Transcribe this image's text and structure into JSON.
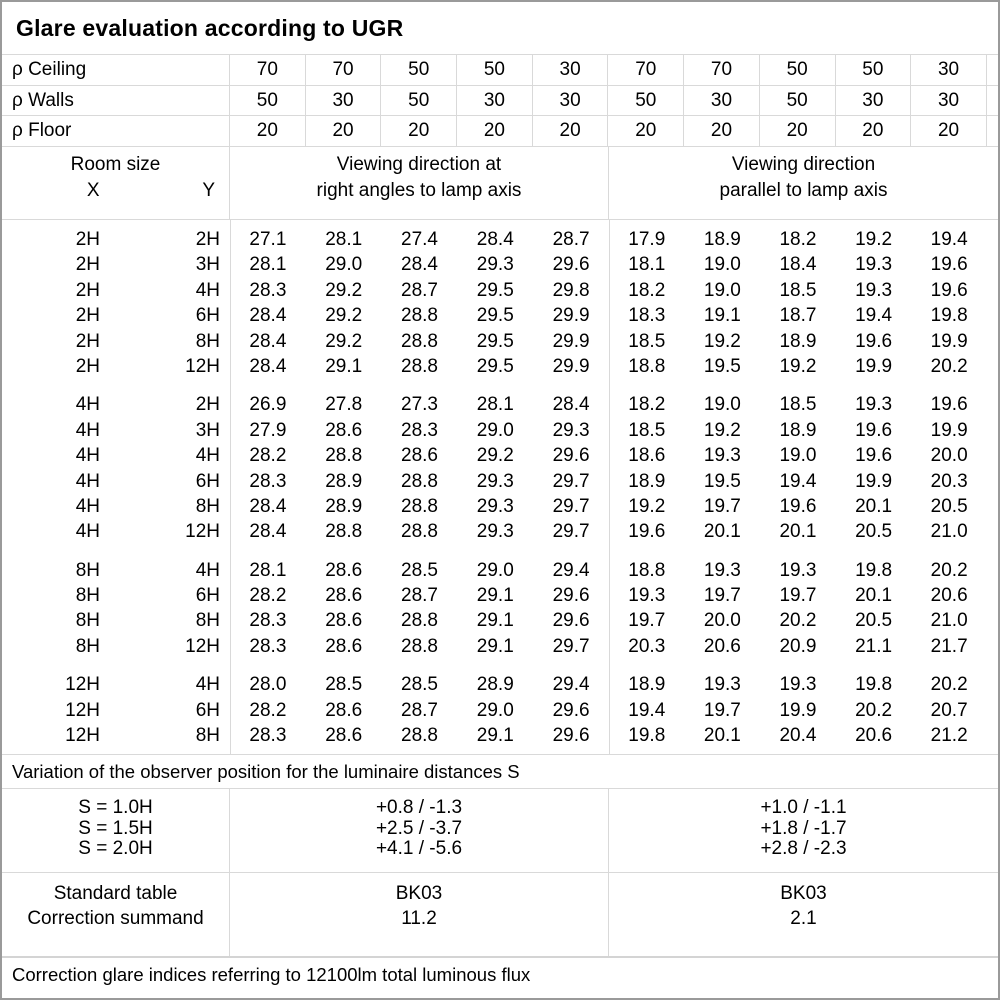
{
  "title": "Glare evaluation according to UGR",
  "colors": {
    "grid_line": "#d9d9d9",
    "outer_border": "#9a9a9a",
    "text": "#000000",
    "background": "#ffffff"
  },
  "reflectance_rows": [
    {
      "label": "ρ Ceiling",
      "values": [
        "70",
        "70",
        "50",
        "50",
        "30",
        "70",
        "70",
        "50",
        "50",
        "30"
      ]
    },
    {
      "label": "ρ Walls",
      "values": [
        "50",
        "30",
        "50",
        "30",
        "30",
        "50",
        "30",
        "50",
        "30",
        "30"
      ]
    },
    {
      "label": "ρ Floor",
      "values": [
        "20",
        "20",
        "20",
        "20",
        "20",
        "20",
        "20",
        "20",
        "20",
        "20"
      ]
    }
  ],
  "column_headers": {
    "room_size": "Room size",
    "x": "X",
    "y": "Y",
    "perpendicular": [
      "Viewing direction at",
      "right angles to lamp axis"
    ],
    "parallel": [
      "Viewing direction",
      "parallel to lamp axis"
    ]
  },
  "ugr_blocks": [
    {
      "rows": [
        {
          "x": "2H",
          "y": "2H",
          "values": [
            "27.1",
            "28.1",
            "27.4",
            "28.4",
            "28.7",
            "17.9",
            "18.9",
            "18.2",
            "19.2",
            "19.4"
          ]
        },
        {
          "x": "2H",
          "y": "3H",
          "values": [
            "28.1",
            "29.0",
            "28.4",
            "29.3",
            "29.6",
            "18.1",
            "19.0",
            "18.4",
            "19.3",
            "19.6"
          ]
        },
        {
          "x": "2H",
          "y": "4H",
          "values": [
            "28.3",
            "29.2",
            "28.7",
            "29.5",
            "29.8",
            "18.2",
            "19.0",
            "18.5",
            "19.3",
            "19.6"
          ]
        },
        {
          "x": "2H",
          "y": "6H",
          "values": [
            "28.4",
            "29.2",
            "28.8",
            "29.5",
            "29.9",
            "18.3",
            "19.1",
            "18.7",
            "19.4",
            "19.8"
          ]
        },
        {
          "x": "2H",
          "y": "8H",
          "values": [
            "28.4",
            "29.2",
            "28.8",
            "29.5",
            "29.9",
            "18.5",
            "19.2",
            "18.9",
            "19.6",
            "19.9"
          ]
        },
        {
          "x": "2H",
          "y": "12H",
          "values": [
            "28.4",
            "29.1",
            "28.8",
            "29.5",
            "29.9",
            "18.8",
            "19.5",
            "19.2",
            "19.9",
            "20.2"
          ]
        }
      ]
    },
    {
      "rows": [
        {
          "x": "4H",
          "y": "2H",
          "values": [
            "26.9",
            "27.8",
            "27.3",
            "28.1",
            "28.4",
            "18.2",
            "19.0",
            "18.5",
            "19.3",
            "19.6"
          ]
        },
        {
          "x": "4H",
          "y": "3H",
          "values": [
            "27.9",
            "28.6",
            "28.3",
            "29.0",
            "29.3",
            "18.5",
            "19.2",
            "18.9",
            "19.6",
            "19.9"
          ]
        },
        {
          "x": "4H",
          "y": "4H",
          "values": [
            "28.2",
            "28.8",
            "28.6",
            "29.2",
            "29.6",
            "18.6",
            "19.3",
            "19.0",
            "19.6",
            "20.0"
          ]
        },
        {
          "x": "4H",
          "y": "6H",
          "values": [
            "28.3",
            "28.9",
            "28.8",
            "29.3",
            "29.7",
            "18.9",
            "19.5",
            "19.4",
            "19.9",
            "20.3"
          ]
        },
        {
          "x": "4H",
          "y": "8H",
          "values": [
            "28.4",
            "28.9",
            "28.8",
            "29.3",
            "29.7",
            "19.2",
            "19.7",
            "19.6",
            "20.1",
            "20.5"
          ]
        },
        {
          "x": "4H",
          "y": "12H",
          "values": [
            "28.4",
            "28.8",
            "28.8",
            "29.3",
            "29.7",
            "19.6",
            "20.1",
            "20.1",
            "20.5",
            "21.0"
          ]
        }
      ]
    },
    {
      "rows": [
        {
          "x": "8H",
          "y": "4H",
          "values": [
            "28.1",
            "28.6",
            "28.5",
            "29.0",
            "29.4",
            "18.8",
            "19.3",
            "19.3",
            "19.8",
            "20.2"
          ]
        },
        {
          "x": "8H",
          "y": "6H",
          "values": [
            "28.2",
            "28.6",
            "28.7",
            "29.1",
            "29.6",
            "19.3",
            "19.7",
            "19.7",
            "20.1",
            "20.6"
          ]
        },
        {
          "x": "8H",
          "y": "8H",
          "values": [
            "28.3",
            "28.6",
            "28.8",
            "29.1",
            "29.6",
            "19.7",
            "20.0",
            "20.2",
            "20.5",
            "21.0"
          ]
        },
        {
          "x": "8H",
          "y": "12H",
          "values": [
            "28.3",
            "28.6",
            "28.8",
            "29.1",
            "29.7",
            "20.3",
            "20.6",
            "20.9",
            "21.1",
            "21.7"
          ]
        }
      ]
    },
    {
      "rows": [
        {
          "x": "12H",
          "y": "4H",
          "values": [
            "28.0",
            "28.5",
            "28.5",
            "28.9",
            "29.4",
            "18.9",
            "19.3",
            "19.3",
            "19.8",
            "20.2"
          ]
        },
        {
          "x": "12H",
          "y": "6H",
          "values": [
            "28.2",
            "28.6",
            "28.7",
            "29.0",
            "29.6",
            "19.4",
            "19.7",
            "19.9",
            "20.2",
            "20.7"
          ]
        },
        {
          "x": "12H",
          "y": "8H",
          "values": [
            "28.3",
            "28.6",
            "28.8",
            "29.1",
            "29.6",
            "19.8",
            "20.1",
            "20.4",
            "20.6",
            "21.2"
          ]
        }
      ]
    }
  ],
  "variation": {
    "note": "Variation of the observer position for the luminaire distances S",
    "s_labels": [
      "S = 1.0H",
      "S = 1.5H",
      "S = 2.0H"
    ],
    "perpendicular_values": [
      "+0.8 / -1.3",
      "+2.5 / -3.7",
      "+4.1 / -5.6"
    ],
    "parallel_values": [
      "+1.0 / -1.1",
      "+1.8 / -1.7",
      "+2.8 / -2.3"
    ]
  },
  "summary": {
    "labels": [
      "Standard table",
      "Correction summand"
    ],
    "perpendicular_values": [
      "BK03",
      "11.2"
    ],
    "parallel_values": [
      "BK03",
      "2.1"
    ]
  },
  "footer": "Correction glare indices referring to 12100lm total luminous flux"
}
